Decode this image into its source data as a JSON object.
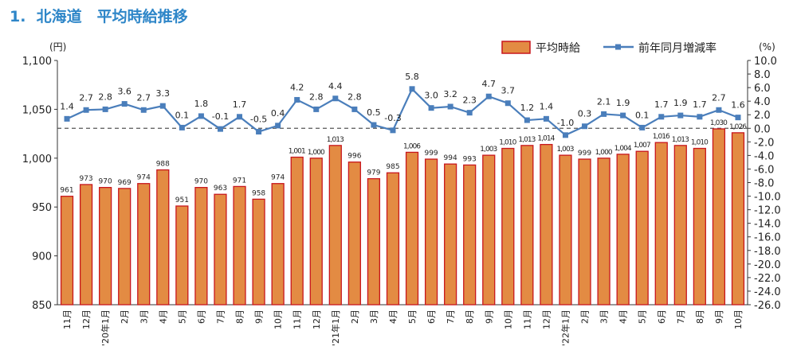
{
  "header": {
    "title": "1.  北海道　平均時給推移"
  },
  "chart_data": {
    "type": "bar+line",
    "left_unit": "(円)",
    "right_unit": "(%)",
    "legend": {
      "bar": "平均時給",
      "line": "前年同月増減率",
      "placement": "top-right"
    },
    "categories": [
      "11月",
      "12月",
      "'20年1月",
      "2月",
      "3月",
      "4月",
      "5月",
      "6月",
      "7月",
      "8月",
      "9月",
      "10月",
      "11月",
      "12月",
      "'21年1月",
      "2月",
      "3月",
      "4月",
      "5月",
      "6月",
      "7月",
      "8月",
      "9月",
      "10月",
      "11月",
      "12月",
      "'22年1月",
      "2月",
      "3月",
      "4月",
      "5月",
      "6月",
      "7月",
      "8月",
      "9月",
      "10月"
    ],
    "series": [
      {
        "name": "平均時給",
        "axis": "left",
        "values": [
          961,
          973,
          970,
          969,
          974,
          988,
          951,
          970,
          963,
          971,
          958,
          974,
          1001,
          1000,
          1013,
          996,
          979,
          985,
          1006,
          999,
          994,
          993,
          1003,
          1010,
          1013,
          1014,
          1003,
          999,
          1000,
          1004,
          1007,
          1016,
          1013,
          1010,
          1030,
          1026
        ],
        "labels": [
          "961",
          "973",
          "970",
          "969",
          "974",
          "988",
          "951",
          "970",
          "963",
          "971",
          "958",
          "974",
          "1,001",
          "1,000",
          "1,013",
          "996",
          "979",
          "985",
          "1,006",
          "999",
          "994",
          "993",
          "1,003",
          "1,010",
          "1,013",
          "1,014",
          "1,003",
          "999",
          "1,000",
          "1,004",
          "1,007",
          "1,016",
          "1,013",
          "1,010",
          "1,030",
          "1,026"
        ]
      },
      {
        "name": "前年同月増減率",
        "axis": "right",
        "values": [
          1.4,
          2.7,
          2.8,
          3.6,
          2.7,
          3.3,
          0.1,
          1.8,
          -0.1,
          1.7,
          -0.5,
          0.4,
          4.2,
          2.8,
          4.4,
          2.8,
          0.5,
          -0.3,
          5.8,
          3.0,
          3.2,
          2.3,
          4.7,
          3.7,
          1.2,
          1.4,
          -1.0,
          0.3,
          2.1,
          1.9,
          0.1,
          1.7,
          1.9,
          1.7,
          2.7,
          1.6
        ],
        "labels": [
          "1.4",
          "2.7",
          "2.8",
          "3.6",
          "2.7",
          "3.3",
          "0.1",
          "1.8",
          "-0.1",
          "1.7",
          "-0.5",
          "0.4",
          "4.2",
          "2.8",
          "4.4",
          "2.8",
          "0.5",
          "-0.3",
          "5.8",
          "3.0",
          "3.2",
          "2.3",
          "4.7",
          "3.7",
          "1.2",
          "1.4",
          "-1.0",
          "0.3",
          "2.1",
          "1.9",
          "0.1",
          "1.7",
          "1.9",
          "1.7",
          "2.7",
          "1.6"
        ]
      }
    ],
    "left_axis": {
      "min": 850,
      "max": 1100,
      "ticks": [
        850,
        900,
        950,
        1000,
        1050,
        1100
      ],
      "tick_labels": [
        "850",
        "900",
        "950",
        "1,000",
        "1,050",
        "1,100"
      ]
    },
    "right_axis": {
      "min": -26,
      "max": 10,
      "step": 2,
      "tick_labels": [
        "10.0",
        "8.0",
        "6.0",
        "4.0",
        "2.0",
        "0.0",
        "-2.0",
        "-4.0",
        "-6.0",
        "-8.0",
        "-10.0",
        "-12.0",
        "-14.0",
        "-16.0",
        "-18.0",
        "-20.0",
        "-22.0",
        "-24.0",
        "-26.0"
      ]
    },
    "zero_line": {
      "axis": "right",
      "value": 0,
      "style": "dashed"
    },
    "grid": false,
    "colors": {
      "bar_fill": "#e38b43",
      "bar_stroke": "#c8161d",
      "line": "#4a7ebb",
      "zero_line": "#555555",
      "title": "#2e86c8"
    }
  }
}
